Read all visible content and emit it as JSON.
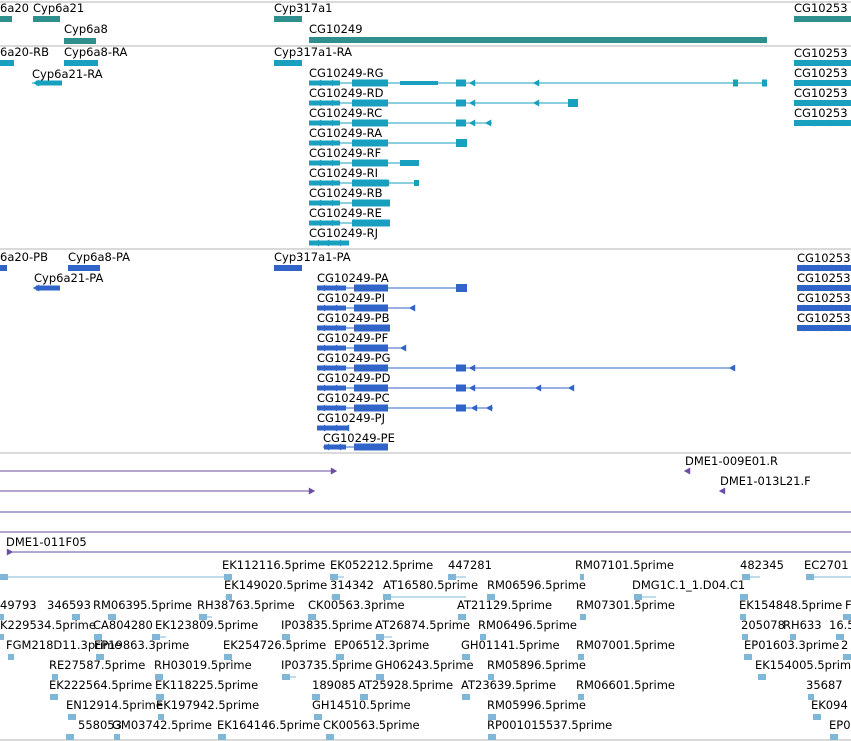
{
  "colors": {
    "gene": "#2f8f8c",
    "mrna": "#1aa0bf",
    "protein": "#3064c8",
    "clone": "#6b4ea2",
    "est": "#80b7d6",
    "divider": "#b4b4b4",
    "text": "#000000"
  },
  "tracks": {
    "genes": {
      "labels": [
        "6a20",
        "Cyp6a21",
        "Cyp6a8",
        "Cyp317a1",
        "CG10249",
        "CG10253"
      ]
    },
    "transcripts": {
      "labels": [
        "6a20-RB",
        "Cyp6a8-RA",
        "Cyp6a21-RA",
        "Cyp317a1-RA",
        "CG10249-RG",
        "CG10249-RD",
        "CG10249-RC",
        "CG10249-RA",
        "CG10249-RF",
        "CG10249-RI",
        "CG10249-RB",
        "CG10249-RE",
        "CG10249-RJ",
        "CG10253",
        "CG10253",
        "CG10253",
        "CG10253"
      ]
    },
    "proteins": {
      "labels": [
        "6a20-PB",
        "Cyp6a8-PA",
        "Cyp6a21-PA",
        "Cyp317a1-PA",
        "CG10249-PA",
        "CG10249-PI",
        "CG10249-PB",
        "CG10249-PF",
        "CG10249-PG",
        "CG10249-PD",
        "CG10249-PC",
        "CG10249-PJ",
        "CG10249-PE",
        "CG10253",
        "CG10253",
        "CG10253",
        "CG10253"
      ]
    },
    "clones": {
      "labels": [
        "DME1-009E01.R",
        "DME1-013L21.F",
        "DME1-011F05"
      ]
    },
    "ests": {
      "labels": [
        "EK112116.5prime",
        "EK052212.5prime",
        "447281",
        "RM07101.5prime",
        "482345",
        "EC2701",
        "EK149020.5prime",
        "314342",
        "AT16580.5prime",
        "RM06596.5prime",
        "DMG1C.1_1.D04.C1",
        "49793",
        "346593",
        "RM06395.5prime",
        "RH38763.5prime",
        "CK00563.3prime",
        "AT21129.5prime",
        "RM07301.5prime",
        "EK154848.5prime",
        "F",
        "K229534.5prime",
        "CA804280",
        "EK123809.5prime",
        "IP03835.5prime",
        "AT26874.5prime",
        "RM06496.5prime",
        "205078",
        "RH633",
        "16.5",
        "FGM218D11.3prime",
        "EP19863.3prime",
        "EK254726.5prime",
        "EP06512.3prime",
        "GH01141.5prime",
        "RM07001.5prime",
        "EP01603.3prime",
        "2",
        "RE27587.5prime",
        "RH03019.5prime",
        "IP03735.5prime",
        "GH06243.5prime",
        "RM05896.5prime",
        "EK154005.5prime",
        "EK222564.5prime",
        "EK118225.5prime",
        "189085",
        "AT25928.5prime",
        "AT23639.5prime",
        "RM06601.5prime",
        "35687",
        "EN12914.5prime",
        "EK197942.5prime",
        "GH14510.5prime",
        "RM05996.5prime",
        "EK094",
        "558053",
        "GM03742.5prime",
        "EK164146.5prime",
        "CK00563.5prime",
        "RP001015537.5prime",
        "EP0"
      ]
    }
  }
}
